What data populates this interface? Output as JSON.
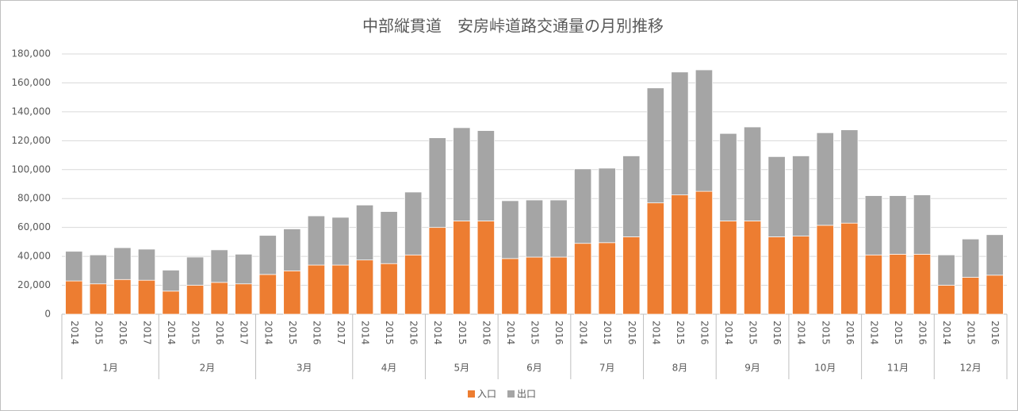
{
  "chart_data": {
    "type": "stacked_bar",
    "title": "中部縦貫道　安房峠道路交通量の月別推移",
    "groups": [
      {
        "name": "1月",
        "categories": [
          "2014",
          "2015",
          "2016",
          "2017"
        ]
      },
      {
        "name": "2月",
        "categories": [
          "2014",
          "2015",
          "2016",
          "2017"
        ]
      },
      {
        "name": "3月",
        "categories": [
          "2014",
          "2015",
          "2016",
          "2017"
        ]
      },
      {
        "name": "4月",
        "categories": [
          "2014",
          "2015",
          "2016"
        ]
      },
      {
        "name": "5月",
        "categories": [
          "2014",
          "2015",
          "2016"
        ]
      },
      {
        "name": "6月",
        "categories": [
          "2014",
          "2015",
          "2016"
        ]
      },
      {
        "name": "7月",
        "categories": [
          "2014",
          "2015",
          "2016"
        ]
      },
      {
        "name": "8月",
        "categories": [
          "2014",
          "2015",
          "2016"
        ]
      },
      {
        "name": "9月",
        "categories": [
          "2014",
          "2015",
          "2016"
        ]
      },
      {
        "name": "10月",
        "categories": [
          "2014",
          "2015",
          "2016"
        ]
      },
      {
        "name": "11月",
        "categories": [
          "2014",
          "2015",
          "2016"
        ]
      },
      {
        "name": "12月",
        "categories": [
          "2014",
          "2015",
          "2016"
        ]
      }
    ],
    "series": [
      {
        "name": "入口",
        "color": "#ed7d31",
        "values": [
          23000,
          21000,
          24000,
          23500,
          16000,
          20000,
          22000,
          21000,
          27500,
          30000,
          34000,
          34000,
          37500,
          35000,
          41000,
          60000,
          64500,
          64500,
          38500,
          39500,
          39500,
          49000,
          49500,
          53500,
          77000,
          82500,
          85000,
          64500,
          64500,
          53500,
          54000,
          61500,
          63000,
          41000,
          41500,
          41500,
          20000,
          25500,
          27000
        ]
      },
      {
        "name": "出口",
        "color": "#a5a5a5",
        "values": [
          20500,
          20000,
          22000,
          21500,
          14500,
          19500,
          22500,
          20500,
          27000,
          29000,
          34000,
          33000,
          38000,
          36000,
          43500,
          62000,
          64500,
          62500,
          40000,
          39500,
          39500,
          51500,
          51500,
          56000,
          79500,
          85000,
          84000,
          60500,
          65000,
          55500,
          55500,
          64000,
          64500,
          41000,
          40500,
          41000,
          21000,
          26500,
          28000
        ]
      }
    ],
    "ylim": [
      0,
      180000
    ],
    "yticks": [
      0,
      {
        "value": 20000,
        "label": "20,000"
      },
      {
        "value": 40000,
        "label": "40,000"
      },
      {
        "value": 60000,
        "label": "60,000"
      },
      {
        "value": 80000,
        "label": "80,000"
      },
      {
        "value": 100000,
        "label": "100,000"
      },
      {
        "value": 120000,
        "label": "120,000"
      },
      {
        "value": 140000,
        "label": "140,000"
      },
      {
        "value": 160000,
        "label": "160,000"
      },
      {
        "value": 180000,
        "label": "180,000"
      }
    ],
    "grid": true,
    "legend": "bottom"
  }
}
